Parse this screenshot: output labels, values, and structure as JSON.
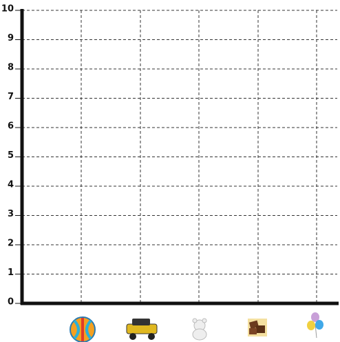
{
  "chart_data": {
    "type": "bar",
    "categories": [
      null,
      null,
      null,
      null,
      null
    ],
    "values": [
      null,
      null,
      null,
      null,
      null
    ],
    "color": "#4472c4",
    "ylim": [
      0,
      10
    ],
    "yticks": [
      0,
      1,
      2,
      3,
      4,
      5,
      6,
      7,
      8,
      9,
      10
    ],
    "grid": true
  }
}
